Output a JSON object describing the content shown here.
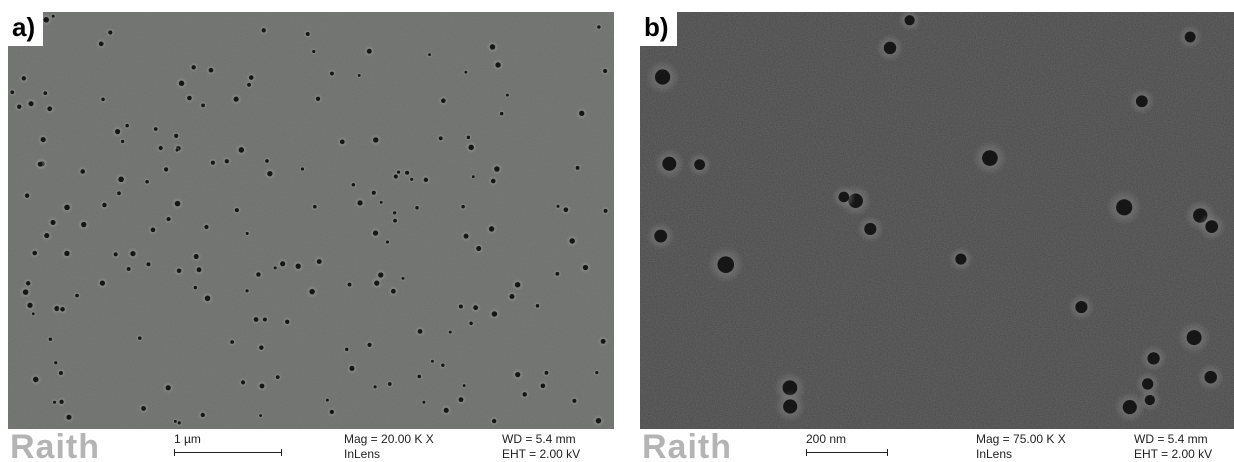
{
  "panels": [
    {
      "label": "a)",
      "logo": "Raith",
      "scale_label": "1 µm",
      "mag": "Mag =  20.00 K X",
      "detector": "InLens",
      "wd": "WD =  5.4 mm",
      "eht": "EHT =  2.00 kV"
    },
    {
      "label": "b)",
      "logo": "Raith",
      "scale_label": "200 nm",
      "mag": "Mag =  75.00 K X",
      "detector": "InLens",
      "wd": "WD =  5.4 mm",
      "eht": "EHT =  2.00 kV"
    }
  ],
  "colors": {
    "panel_a_background": "#6d6f6d",
    "panel_b_background": "#484848",
    "pore": "#161616",
    "infobar": "#ffffff",
    "logo": "#b4b4b4"
  }
}
